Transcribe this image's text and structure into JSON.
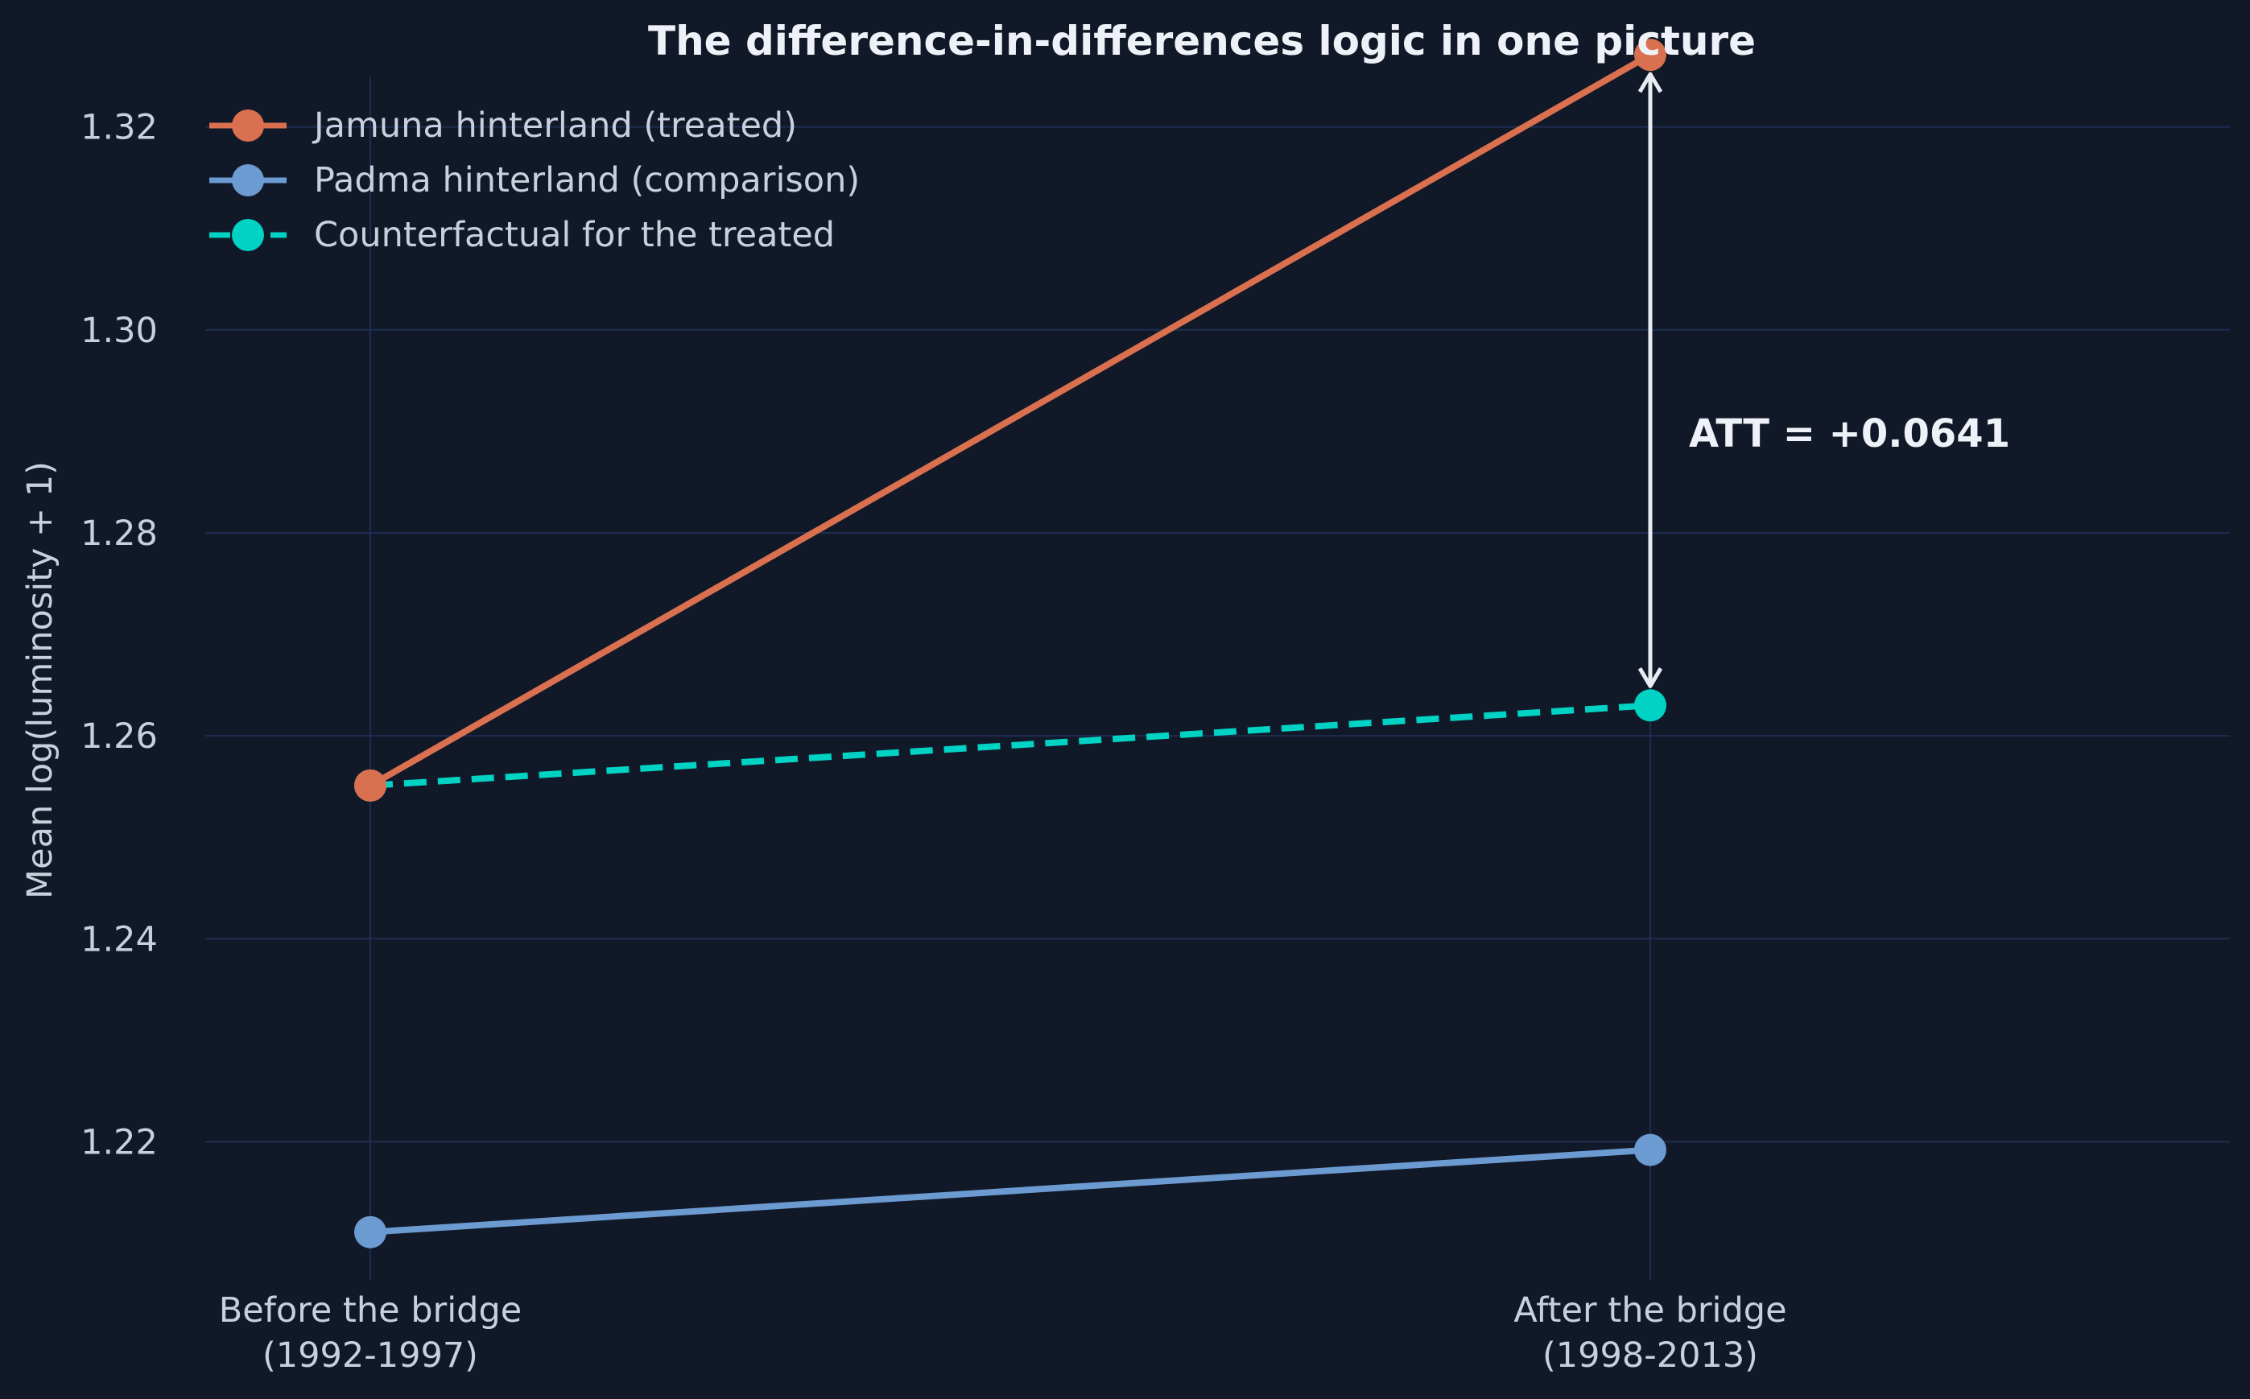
{
  "chart_data": {
    "type": "line",
    "title": "The difference-in-differences logic in one picture",
    "xlabel": "",
    "ylabel": "Mean log(luminosity + 1)",
    "categories": [
      {
        "line1": "Before the bridge",
        "line2": "(1992-1997)"
      },
      {
        "line1": "After the bridge",
        "line2": "(1998-2013)"
      }
    ],
    "ylim": [
      1.206,
      1.3325
    ],
    "yticks": [
      1.22,
      1.24,
      1.26,
      1.28,
      1.3,
      1.32
    ],
    "grid": true,
    "legend_position": "top-left",
    "series": [
      {
        "name": "Jamuna hinterland (treated)",
        "values": [
          1.2551,
          1.3271
        ],
        "color": "#d9704f",
        "dashed": false
      },
      {
        "name": "Padma hinterland (comparison)",
        "values": [
          1.2111,
          1.2192
        ],
        "color": "#6b9bd1",
        "dashed": false
      },
      {
        "name": "Counterfactual for the treated",
        "values": [
          1.2551,
          1.263
        ],
        "color": "#00d2c4",
        "dashed": true
      }
    ],
    "annotation": {
      "text": "ATT = +0.0641",
      "from": 1.263,
      "to": 1.3271,
      "category_index": 1
    }
  },
  "colors": {
    "background": "#111827",
    "grid": "#1e2d52",
    "arrow": "#e8ebf2"
  }
}
